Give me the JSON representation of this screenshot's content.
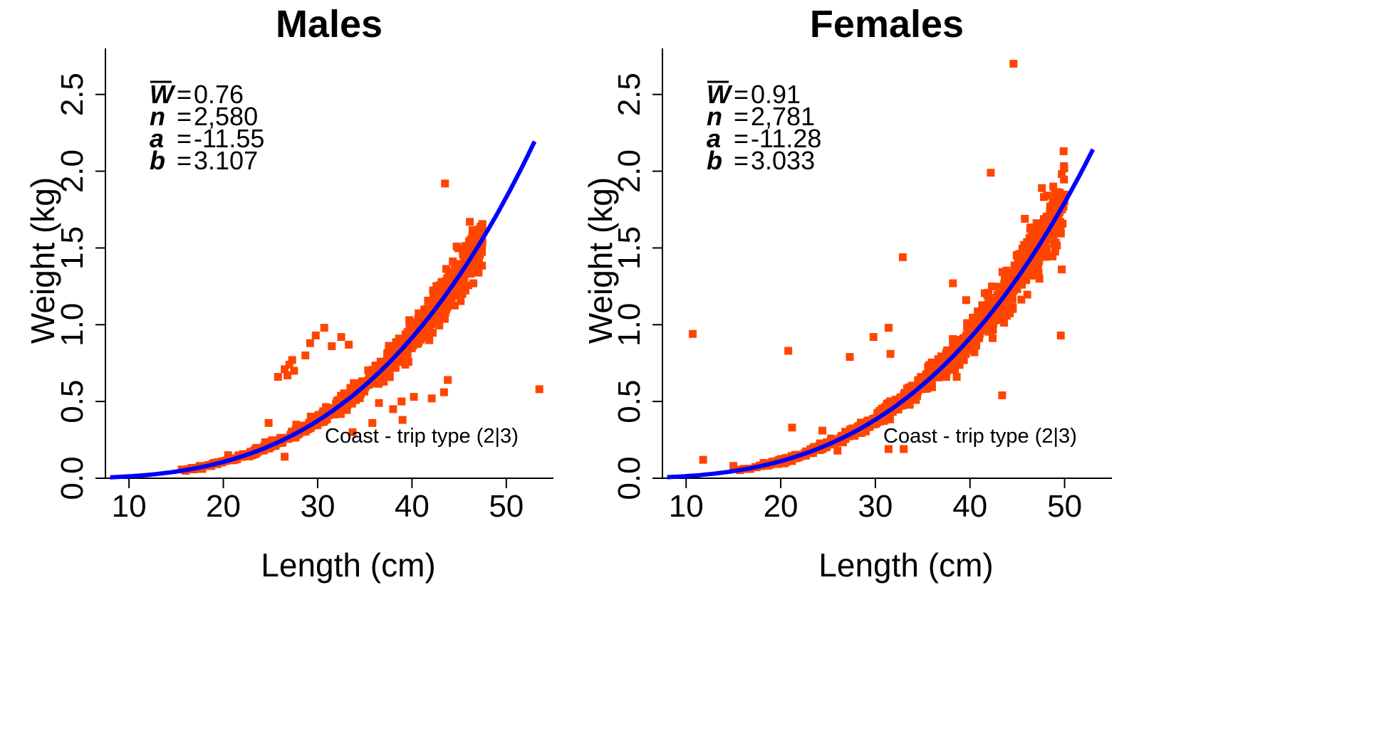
{
  "chart_data": [
    {
      "type": "scatter",
      "title": "Males",
      "xlabel": "Length (cm)",
      "ylabel": "Weight (kg)",
      "xlim": [
        7.5,
        55
      ],
      "ylim": [
        0,
        2.8
      ],
      "xticks": [
        "10",
        "20",
        "30",
        "40",
        "50"
      ],
      "yticks": [
        "0.0",
        "0.5",
        "1.0",
        "1.5",
        "2.0",
        "2.5"
      ],
      "point_color": "#ff4500",
      "curve_color": "#0000ff",
      "grid": false,
      "stats": [
        {
          "symbol": "W",
          "overline": true,
          "value": "0.76"
        },
        {
          "symbol": "n",
          "overline": false,
          "value": "2,580"
        },
        {
          "symbol": "a",
          "overline": false,
          "value": "-11.55"
        },
        {
          "symbol": "b",
          "overline": false,
          "value": "3.107"
        }
      ],
      "annotation": "Coast - trip type (2|3)",
      "fit": {
        "a": -11.55,
        "b": 3.107,
        "x_range": [
          8,
          53
        ]
      },
      "cloud": {
        "x_range": [
          15,
          47.5
        ],
        "spread": 0.055
      },
      "outliers": [
        [
          30.7,
          0.98
        ],
        [
          29.8,
          0.93
        ],
        [
          32.5,
          0.92
        ],
        [
          33.3,
          0.87
        ],
        [
          29.2,
          0.88
        ],
        [
          31.5,
          0.86
        ],
        [
          28.7,
          0.8
        ],
        [
          27.3,
          0.77
        ],
        [
          27.0,
          0.74
        ],
        [
          26.5,
          0.71
        ],
        [
          26.8,
          0.67
        ],
        [
          25.8,
          0.66
        ],
        [
          27.5,
          0.7
        ],
        [
          43.5,
          1.92
        ],
        [
          53.5,
          0.58
        ],
        [
          43.8,
          0.64
        ],
        [
          43.4,
          0.56
        ],
        [
          42.1,
          0.52
        ],
        [
          40.2,
          0.53
        ],
        [
          38.9,
          0.5
        ],
        [
          36.5,
          0.49
        ],
        [
          38.0,
          0.45
        ],
        [
          39.0,
          0.38
        ],
        [
          35.8,
          0.36
        ],
        [
          33.7,
          0.3
        ],
        [
          24.8,
          0.36
        ],
        [
          26.5,
          0.14
        ],
        [
          19.0,
          0.1
        ],
        [
          17.5,
          0.08
        ],
        [
          20.5,
          0.15
        ]
      ]
    },
    {
      "type": "scatter",
      "title": "Females",
      "xlabel": "Length (cm)",
      "ylabel": "Weight (kg)",
      "xlim": [
        7.5,
        55
      ],
      "ylim": [
        0,
        2.8
      ],
      "xticks": [
        "10",
        "20",
        "30",
        "40",
        "50"
      ],
      "yticks": [
        "0.0",
        "0.5",
        "1.0",
        "1.5",
        "2.0",
        "2.5"
      ],
      "point_color": "#ff4500",
      "curve_color": "#0000ff",
      "grid": false,
      "stats": [
        {
          "symbol": "W",
          "overline": true,
          "value": "0.91"
        },
        {
          "symbol": "n",
          "overline": false,
          "value": "2,781"
        },
        {
          "symbol": "a",
          "overline": false,
          "value": "-11.28"
        },
        {
          "symbol": "b",
          "overline": false,
          "value": "3.033"
        }
      ],
      "annotation": "Coast - trip type (2|3)",
      "fit": {
        "a": -11.28,
        "b": 3.033,
        "x_range": [
          8,
          53
        ]
      },
      "cloud": {
        "x_range": [
          15,
          50
        ],
        "spread": 0.06
      },
      "outliers": [
        [
          44.6,
          2.7
        ],
        [
          49.9,
          2.13
        ],
        [
          42.2,
          1.99
        ],
        [
          47.6,
          1.89
        ],
        [
          48.8,
          1.9
        ],
        [
          45.8,
          1.69
        ],
        [
          49.7,
          1.36
        ],
        [
          49.6,
          0.93
        ],
        [
          43.4,
          0.54
        ],
        [
          38.2,
          1.27
        ],
        [
          32.9,
          1.44
        ],
        [
          39.6,
          1.16
        ],
        [
          31.4,
          0.98
        ],
        [
          29.8,
          0.92
        ],
        [
          31.6,
          0.81
        ],
        [
          27.3,
          0.79
        ],
        [
          20.8,
          0.83
        ],
        [
          10.7,
          0.94
        ],
        [
          21.2,
          0.33
        ],
        [
          24.4,
          0.31
        ],
        [
          23.5,
          0.2
        ],
        [
          11.8,
          0.12
        ],
        [
          15.0,
          0.08
        ],
        [
          31.4,
          0.19
        ],
        [
          33.0,
          0.19
        ],
        [
          18.2,
          0.1
        ],
        [
          26.0,
          0.18
        ],
        [
          36.2,
          0.75
        ],
        [
          38.6,
          0.66
        ]
      ]
    }
  ]
}
